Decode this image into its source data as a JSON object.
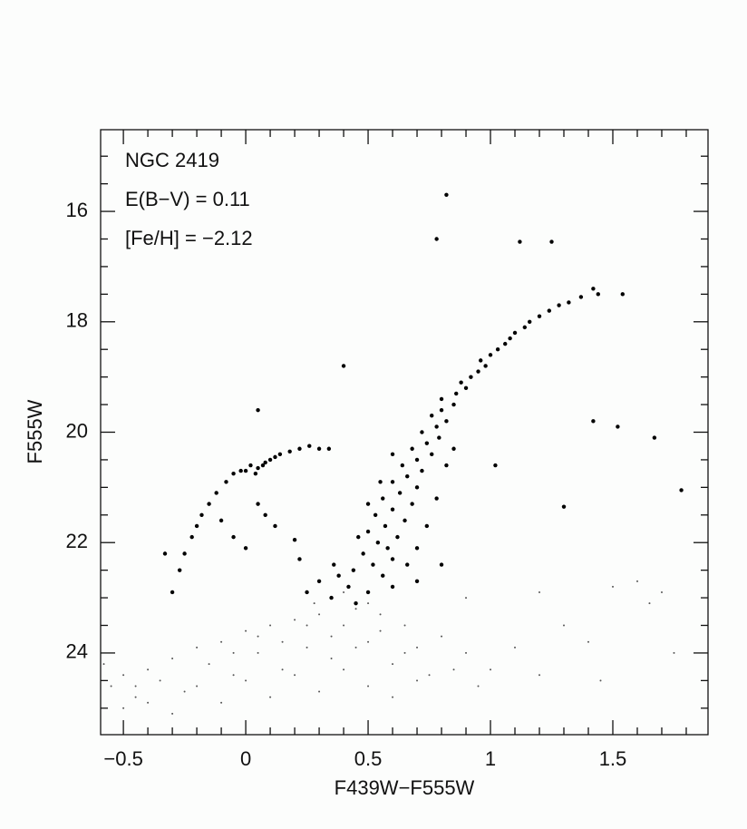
{
  "chart_data": {
    "type": "scatter",
    "xlabel": "F439W−F555W",
    "ylabel": "F555W",
    "annotations": [
      "NGC 2419",
      "E(B−V) = 0.11",
      "[Fe/H] = −2.12"
    ],
    "xlim": [
      -0.593,
      1.889
    ],
    "ylim": [
      25.48,
      14.52
    ],
    "xticks": [
      {
        "value": -0.5,
        "label": "−0.5"
      },
      0,
      0.5,
      1,
      1.5
    ],
    "yticks": [
      16,
      18,
      20,
      22,
      24
    ],
    "xminorticks": [
      -0.4,
      -0.3,
      -0.2,
      -0.1,
      0.1,
      0.2,
      0.3,
      0.4,
      0.6,
      0.7,
      0.8,
      0.9,
      1.1,
      1.2,
      1.3,
      1.4,
      1.6,
      1.7,
      1.8
    ],
    "yminorticks": [
      15,
      15.5,
      16.5,
      17,
      17.5,
      18.5,
      19,
      19.5,
      20.5,
      21,
      21.5,
      22.5,
      23,
      23.5,
      24.5,
      25
    ],
    "series": [
      {
        "color": "#000000",
        "x": [
          0.82,
          0.78,
          1.12,
          1.25,
          0.4,
          0.05,
          1.42,
          1.52,
          1.67,
          1.78,
          1.3,
          1.02,
          0.56,
          0.52,
          0.6,
          0.48,
          0.58,
          0.54,
          0.62,
          0.5,
          0.57,
          0.65,
          0.53,
          0.6,
          0.68,
          0.56,
          0.63,
          0.7,
          0.6,
          0.66,
          0.72,
          0.64,
          0.7,
          0.76,
          0.68,
          0.74,
          0.79,
          0.72,
          0.78,
          0.82,
          0.76,
          0.8,
          0.85,
          0.8,
          0.86,
          0.9,
          0.88,
          0.92,
          0.95,
          0.98,
          0.96,
          1.0,
          1.03,
          1.06,
          1.08,
          1.1,
          1.14,
          1.16,
          1.2,
          1.24,
          1.28,
          1.32,
          1.37,
          1.42,
          1.44,
          1.54,
          0.44,
          0.66,
          0.7,
          0.46,
          0.74,
          0.5,
          0.78,
          0.55,
          0.82,
          0.6,
          0.85,
          0.38,
          0.42,
          0.5,
          0.6,
          0.7,
          0.36,
          0.3,
          0.25,
          0.8,
          0.35,
          0.45,
          0.0,
          0.02,
          0.05,
          0.08,
          0.1,
          0.12,
          0.04,
          -0.02,
          0.07,
          0.14,
          0.18,
          0.22,
          0.26,
          0.3,
          0.34,
          -0.05,
          -0.08,
          -0.12,
          -0.15,
          -0.18,
          -0.2,
          -0.22,
          -0.25,
          -0.27,
          -0.3,
          -0.33,
          -0.1,
          -0.05,
          0.0,
          0.05,
          0.08,
          0.12,
          0.2,
          0.22
        ],
        "values": [
          15.7,
          16.5,
          16.55,
          16.55,
          18.8,
          19.6,
          19.8,
          19.9,
          20.1,
          21.05,
          21.35,
          20.6,
          22.6,
          22.4,
          22.3,
          22.2,
          22.1,
          22.0,
          21.9,
          21.8,
          21.7,
          21.6,
          21.5,
          21.4,
          21.3,
          21.2,
          21.1,
          21.0,
          20.9,
          20.8,
          20.7,
          20.6,
          20.5,
          20.4,
          20.3,
          20.2,
          20.1,
          20.0,
          19.9,
          19.8,
          19.7,
          19.6,
          19.5,
          19.4,
          19.3,
          19.2,
          19.1,
          19.0,
          18.9,
          18.8,
          18.7,
          18.6,
          18.5,
          18.4,
          18.3,
          18.2,
          18.1,
          18.0,
          17.9,
          17.8,
          17.7,
          17.65,
          17.55,
          17.4,
          17.5,
          17.5,
          22.5,
          22.4,
          22.1,
          21.9,
          21.7,
          21.3,
          21.2,
          20.9,
          20.6,
          20.4,
          20.3,
          22.6,
          22.8,
          22.9,
          22.8,
          22.7,
          22.4,
          22.7,
          22.9,
          22.4,
          23.0,
          23.1,
          20.7,
          20.6,
          20.65,
          20.55,
          20.5,
          20.45,
          20.75,
          20.7,
          20.6,
          20.4,
          20.35,
          20.3,
          20.25,
          20.3,
          20.3,
          20.75,
          20.9,
          21.1,
          21.3,
          21.5,
          21.7,
          21.9,
          22.2,
          22.5,
          22.9,
          22.2,
          21.6,
          21.9,
          22.1,
          21.3,
          21.5,
          21.7,
          21.95,
          22.3
        ]
      },
      {
        "color": "#555555",
        "x": [
          -0.55,
          -0.5,
          -0.45,
          -0.4,
          -0.35,
          -0.3,
          -0.25,
          -0.2,
          -0.15,
          -0.1,
          -0.05,
          0.0,
          0.05,
          0.1,
          0.15,
          0.2,
          0.25,
          0.3,
          0.35,
          0.4,
          0.45,
          0.5,
          0.55,
          0.6,
          0.65,
          0.7,
          0.75,
          0.8,
          0.85,
          0.9,
          0.95,
          1.0,
          1.1,
          1.2,
          1.3,
          1.45,
          1.6,
          1.65,
          1.7,
          1.75,
          -0.5,
          -0.4,
          -0.3,
          -0.2,
          -0.1,
          0.0,
          0.1,
          0.2,
          0.3,
          0.4,
          0.5,
          0.6,
          0.7,
          0.35,
          0.25,
          0.15,
          0.05,
          -0.05,
          0.45,
          0.55,
          0.65,
          0.28,
          0.4,
          0.5,
          1.2,
          1.5,
          1.4,
          0.9,
          -0.58,
          -0.45
        ],
        "values": [
          24.6,
          24.4,
          24.8,
          24.3,
          24.5,
          24.1,
          24.7,
          23.9,
          24.2,
          23.8,
          24.4,
          23.6,
          24.0,
          23.5,
          24.3,
          23.4,
          23.9,
          23.3,
          24.1,
          23.5,
          23.2,
          23.8,
          23.3,
          24.2,
          23.5,
          23.9,
          24.4,
          23.7,
          24.3,
          24.0,
          24.6,
          24.3,
          23.9,
          24.4,
          23.5,
          24.5,
          22.7,
          23.1,
          22.9,
          24.0,
          25.0,
          24.9,
          25.1,
          24.6,
          24.9,
          24.5,
          24.8,
          24.4,
          24.7,
          24.3,
          24.6,
          24.8,
          24.5,
          23.7,
          23.5,
          23.8,
          23.7,
          24.0,
          23.9,
          23.6,
          24.0,
          23.1,
          22.9,
          23.1,
          22.9,
          22.8,
          23.8,
          23.0,
          24.2,
          24.6
        ]
      }
    ]
  }
}
